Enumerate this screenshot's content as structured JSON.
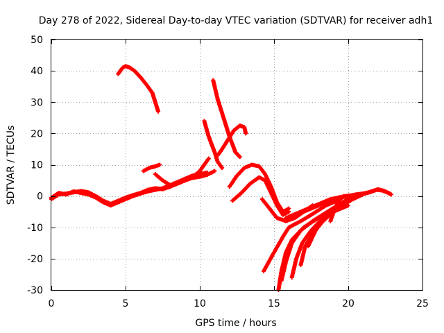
{
  "chart_data": {
    "type": "scatter",
    "title": "Day 278 of 2022, Sidereal Day-to-day VTEC variation (SDTVAR) for receiver adh1",
    "xlabel": "GPS time / hours",
    "ylabel": "SDTVAR / TECUs",
    "xlim": [
      0,
      25
    ],
    "ylim": [
      -30,
      50
    ],
    "xticks": [
      0,
      5,
      10,
      15,
      20,
      25
    ],
    "yticks": [
      -30,
      -20,
      -10,
      0,
      10,
      20,
      30,
      40,
      50
    ],
    "grid": true,
    "marker": "+",
    "color": "#ff0000",
    "series": [
      {
        "name": "s1",
        "points": [
          [
            0,
            -1
          ],
          [
            0.5,
            0.5
          ],
          [
            1,
            0.8
          ],
          [
            1.5,
            1.2
          ],
          [
            2,
            1.6
          ],
          [
            2.5,
            1.2
          ],
          [
            3,
            0
          ],
          [
            3.5,
            -1.5
          ],
          [
            4,
            -2.5
          ],
          [
            4.5,
            -1.5
          ],
          [
            5,
            -0.5
          ],
          [
            5.5,
            0.3
          ],
          [
            6,
            1
          ],
          [
            6.5,
            2
          ],
          [
            7,
            2.5
          ],
          [
            7.5,
            2.2
          ],
          [
            8,
            3
          ],
          [
            8.5,
            4
          ],
          [
            9,
            5
          ],
          [
            9.5,
            5.8
          ],
          [
            10,
            6.2
          ],
          [
            10.5,
            6.8
          ],
          [
            11,
            8
          ]
        ]
      },
      {
        "name": "s2",
        "points": [
          [
            0,
            -0.5
          ],
          [
            0.5,
            1
          ],
          [
            1,
            0.5
          ],
          [
            1.5,
            1.5
          ],
          [
            2,
            1
          ],
          [
            2.5,
            0.5
          ],
          [
            3,
            -0.5
          ],
          [
            3.5,
            -2
          ],
          [
            4,
            -3
          ],
          [
            4.5,
            -2
          ],
          [
            5,
            -1
          ],
          [
            5.5,
            0
          ],
          [
            6,
            0.8
          ],
          [
            6.5,
            1.5
          ],
          [
            7,
            2
          ],
          [
            7.5,
            2.5
          ],
          [
            8,
            3.5
          ],
          [
            8.5,
            4.5
          ],
          [
            9,
            5.5
          ],
          [
            9.5,
            6.5
          ],
          [
            10,
            7
          ],
          [
            10.5,
            7.5
          ]
        ]
      },
      {
        "name": "s3",
        "points": [
          [
            4.5,
            39
          ],
          [
            4.8,
            41
          ],
          [
            5,
            41.5
          ],
          [
            5.3,
            41
          ],
          [
            5.6,
            40
          ],
          [
            6,
            38
          ],
          [
            6.5,
            35
          ],
          [
            6.8,
            33
          ],
          [
            7,
            30
          ],
          [
            7.2,
            27
          ]
        ]
      },
      {
        "name": "s4",
        "points": [
          [
            6.2,
            8
          ],
          [
            6.6,
            9
          ],
          [
            7,
            9.5
          ],
          [
            7.3,
            10
          ]
        ]
      },
      {
        "name": "s5",
        "points": [
          [
            7,
            7
          ],
          [
            7.5,
            5
          ],
          [
            8,
            3.5
          ],
          [
            8.5,
            4
          ],
          [
            9,
            5
          ],
          [
            9.5,
            6
          ],
          [
            10,
            8
          ],
          [
            10.3,
            10
          ],
          [
            10.6,
            12
          ]
        ]
      },
      {
        "name": "s6",
        "points": [
          [
            10.3,
            24
          ],
          [
            10.6,
            19
          ],
          [
            11,
            14
          ],
          [
            11.2,
            11
          ],
          [
            11.5,
            9
          ]
        ]
      },
      {
        "name": "s7",
        "points": [
          [
            10.9,
            37
          ],
          [
            11.2,
            31
          ],
          [
            11.6,
            25
          ],
          [
            12,
            19
          ],
          [
            12.4,
            14
          ],
          [
            12.7,
            12.5
          ]
        ]
      },
      {
        "name": "s8",
        "points": [
          [
            11.2,
            13
          ],
          [
            11.5,
            15
          ],
          [
            11.9,
            18
          ],
          [
            12.3,
            21
          ],
          [
            12.7,
            22.5
          ],
          [
            13,
            22
          ],
          [
            13.1,
            20
          ]
        ]
      },
      {
        "name": "s9",
        "points": [
          [
            12,
            3
          ],
          [
            12.5,
            6.5
          ],
          [
            13,
            9
          ],
          [
            13.5,
            10
          ],
          [
            14,
            9.5
          ],
          [
            14.4,
            7
          ],
          [
            14.8,
            3
          ],
          [
            15.2,
            -2
          ],
          [
            15.6,
            -5
          ],
          [
            16,
            -4
          ]
        ]
      },
      {
        "name": "s10",
        "points": [
          [
            12.2,
            -1.5
          ],
          [
            12.8,
            1
          ],
          [
            13.4,
            4
          ],
          [
            14,
            6
          ],
          [
            14.4,
            5
          ],
          [
            14.8,
            1
          ],
          [
            15.2,
            -3
          ],
          [
            15.6,
            -6
          ],
          [
            16,
            -5
          ]
        ]
      },
      {
        "name": "s11",
        "points": [
          [
            14.2,
            -1
          ],
          [
            14.7,
            -4
          ],
          [
            15.2,
            -7
          ],
          [
            15.8,
            -8
          ],
          [
            16.4,
            -7
          ],
          [
            17,
            -5
          ],
          [
            17.6,
            -3
          ]
        ]
      },
      {
        "name": "s12",
        "points": [
          [
            14.3,
            -24
          ],
          [
            15,
            -18
          ],
          [
            15.6,
            -13
          ],
          [
            16,
            -10
          ],
          [
            16.8,
            -8
          ],
          [
            17.5,
            -6
          ],
          [
            18.5,
            -3
          ],
          [
            19.5,
            -1
          ]
        ]
      },
      {
        "name": "s13",
        "points": [
          [
            15.3,
            -30
          ],
          [
            15.5,
            -24
          ],
          [
            15.8,
            -18
          ],
          [
            16.2,
            -14
          ],
          [
            17,
            -10
          ],
          [
            18,
            -7
          ],
          [
            19,
            -5
          ],
          [
            20,
            -3
          ]
        ]
      },
      {
        "name": "s14",
        "points": [
          [
            15.5,
            -27
          ],
          [
            15.8,
            -21
          ],
          [
            16.2,
            -15
          ],
          [
            16.8,
            -11
          ],
          [
            17.6,
            -8
          ],
          [
            18.6,
            -5
          ],
          [
            19.6,
            -2
          ],
          [
            20.4,
            0
          ]
        ]
      },
      {
        "name": "s15",
        "points": [
          [
            16.2,
            -26
          ],
          [
            16.5,
            -20
          ],
          [
            16.9,
            -15
          ],
          [
            17.5,
            -11
          ],
          [
            18.3,
            -7
          ],
          [
            19.3,
            -4
          ],
          [
            20.3,
            -1
          ],
          [
            21.2,
            1
          ]
        ]
      },
      {
        "name": "s16",
        "points": [
          [
            16.8,
            -22
          ],
          [
            17.1,
            -16
          ],
          [
            17.6,
            -12
          ],
          [
            18.3,
            -8
          ],
          [
            19,
            -5
          ],
          [
            19.8,
            -2
          ],
          [
            20.6,
            0
          ]
        ]
      },
      {
        "name": "s17",
        "points": [
          [
            17.3,
            -16
          ],
          [
            17.8,
            -11
          ],
          [
            18.4,
            -7
          ],
          [
            19.1,
            -4
          ],
          [
            19.8,
            -2
          ],
          [
            20.5,
            -0.5
          ]
        ]
      },
      {
        "name": "s18",
        "points": [
          [
            18.8,
            -8
          ],
          [
            19.1,
            -4
          ],
          [
            19.4,
            -1
          ],
          [
            19.7,
            0
          ]
        ]
      },
      {
        "name": "s19",
        "points": [
          [
            15.8,
            -7
          ],
          [
            16.8,
            -5
          ],
          [
            17.8,
            -3
          ],
          [
            18.8,
            -1
          ],
          [
            19.8,
            0
          ],
          [
            20.8,
            0.5
          ],
          [
            21.6,
            1.5
          ],
          [
            22,
            2.2
          ],
          [
            22.5,
            1.5
          ],
          [
            22.9,
            0.5
          ]
        ]
      },
      {
        "name": "s20",
        "points": [
          [
            16.5,
            -6
          ],
          [
            17.5,
            -4
          ],
          [
            18.5,
            -2
          ],
          [
            19.5,
            -0.5
          ],
          [
            20.5,
            0.5
          ],
          [
            21.3,
            1
          ],
          [
            21.9,
            2
          ],
          [
            22.3,
            1.8
          ],
          [
            22.8,
            0.8
          ]
        ]
      }
    ]
  }
}
